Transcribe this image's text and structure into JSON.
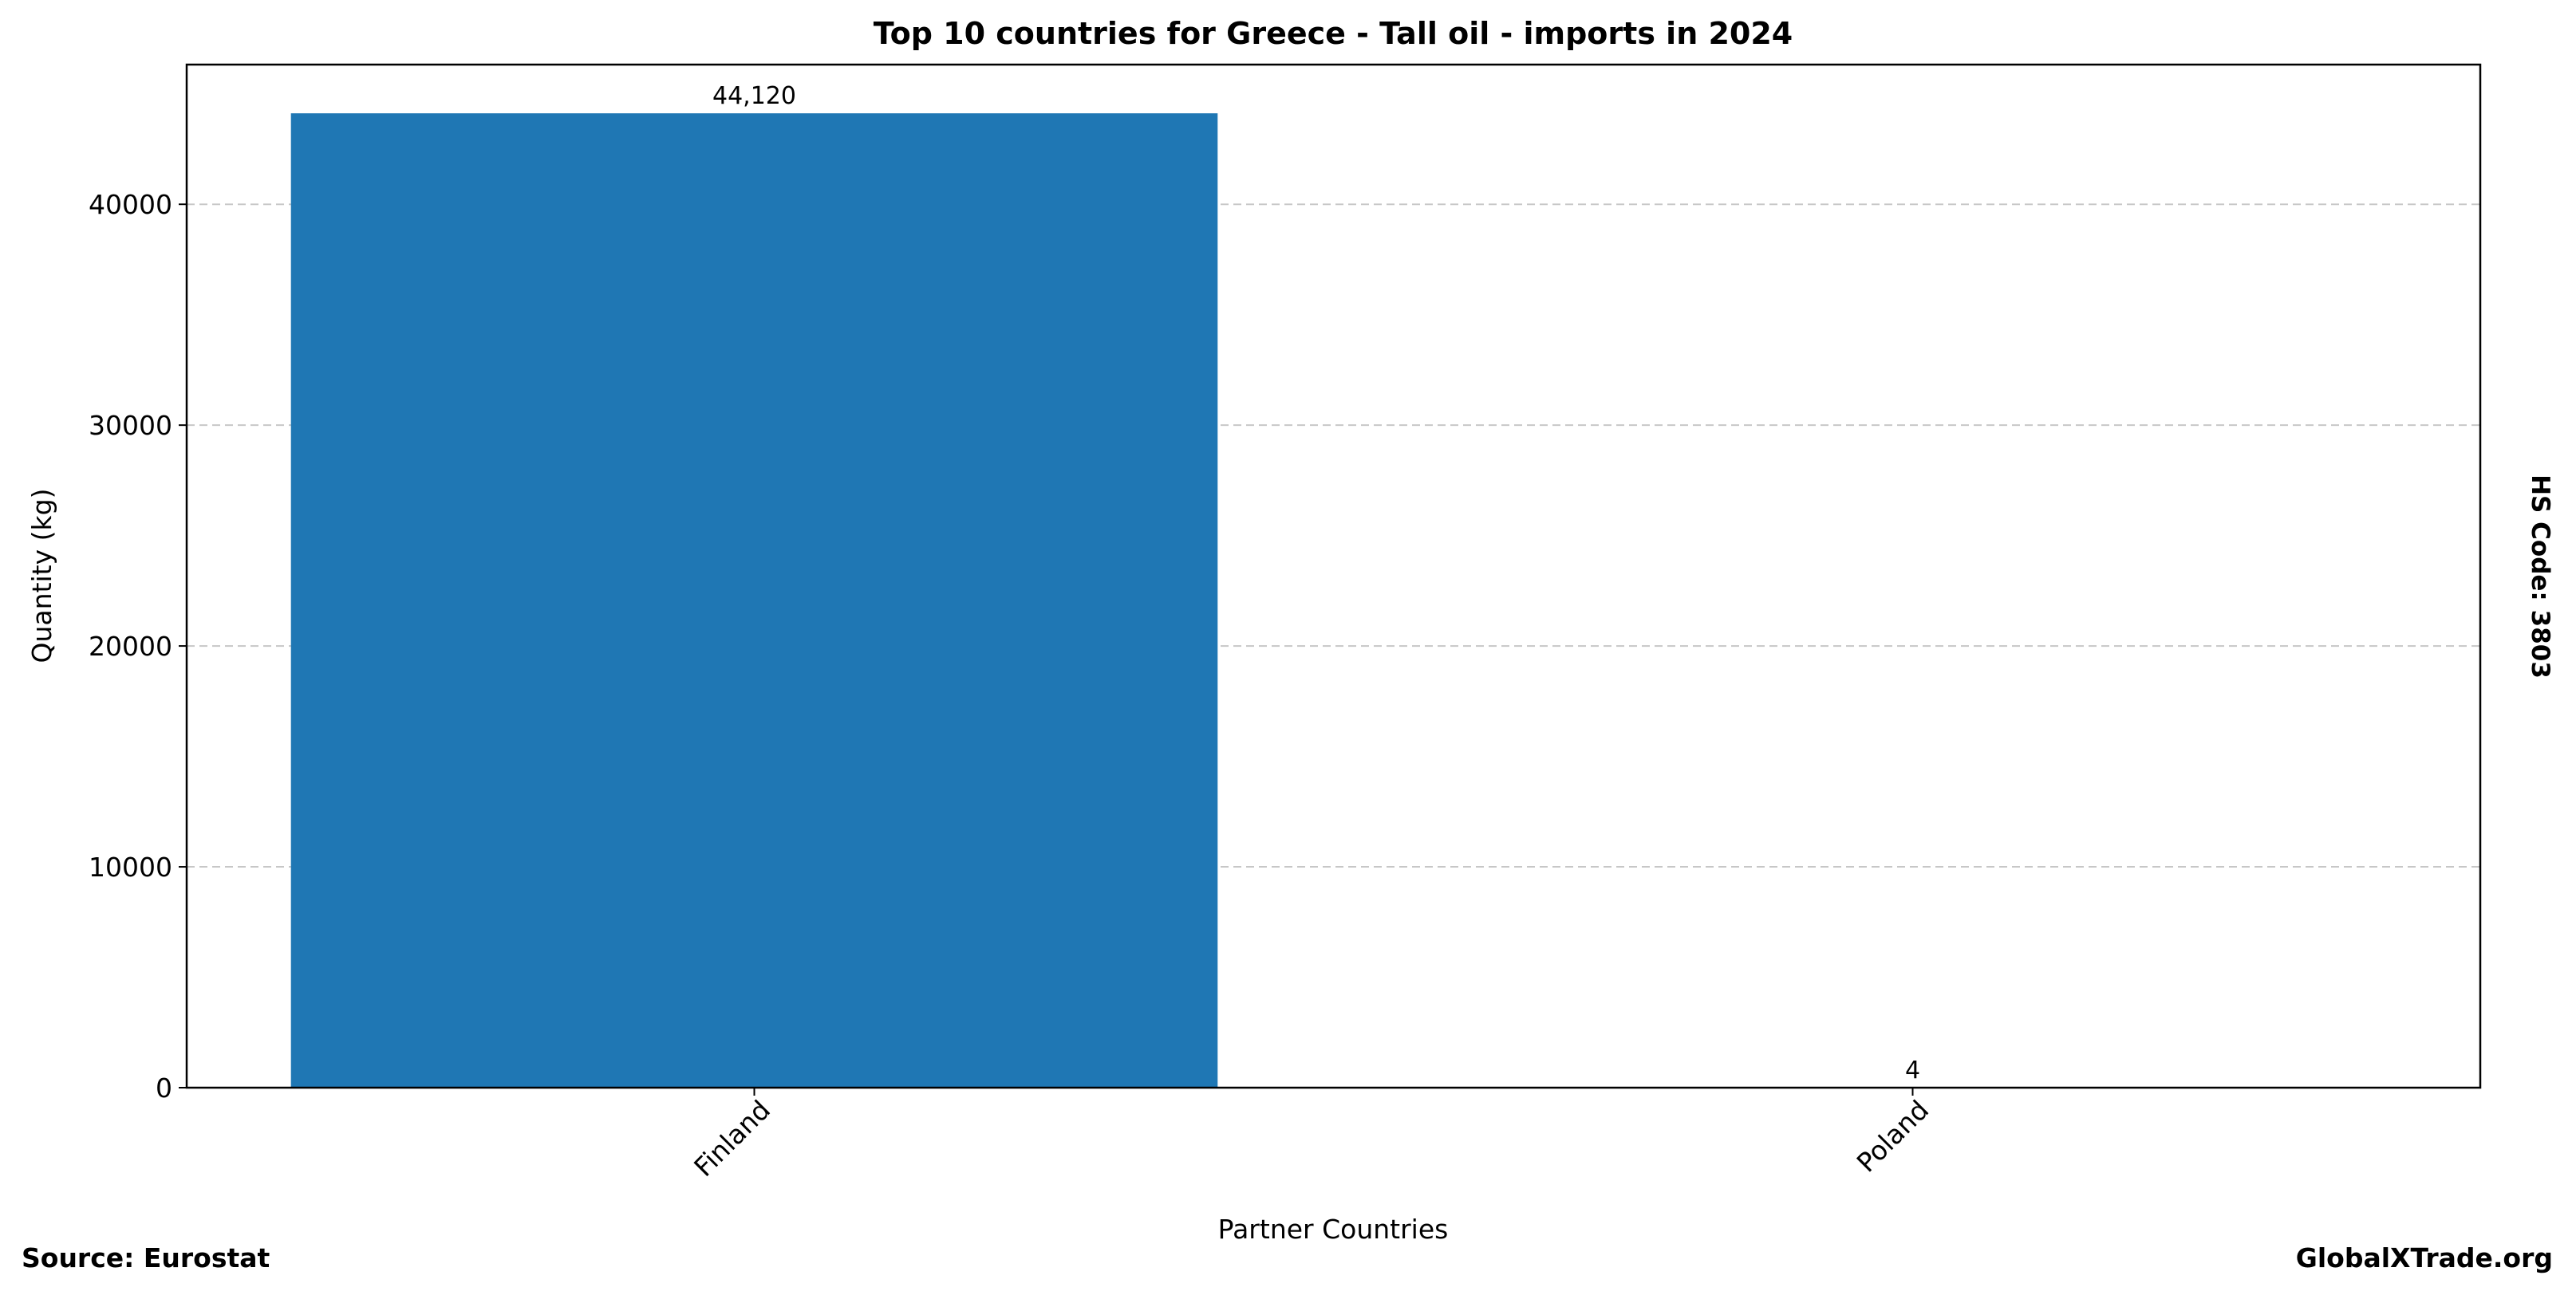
{
  "chart_data": {
    "type": "bar",
    "title": "Top 10 countries for Greece - Tall oil - imports in 2024",
    "xlabel": "Partner Countries",
    "ylabel": "Quantity (kg)",
    "categories": [
      "Finland",
      "Poland"
    ],
    "values": [
      44120,
      4
    ],
    "data_labels": [
      "44,120",
      "4"
    ],
    "ylim": [
      0,
      46326
    ],
    "yticks": [
      0,
      10000,
      20000,
      30000,
      40000
    ],
    "ytick_labels": [
      "0",
      "10000",
      "20000",
      "30000",
      "40000"
    ],
    "grid": "horizontal dashed",
    "bar_color": "#1f77b4",
    "right_label": "HS Code: 3803",
    "source": "Source: Eurostat",
    "watermark": "GlobalXTrade.org"
  }
}
